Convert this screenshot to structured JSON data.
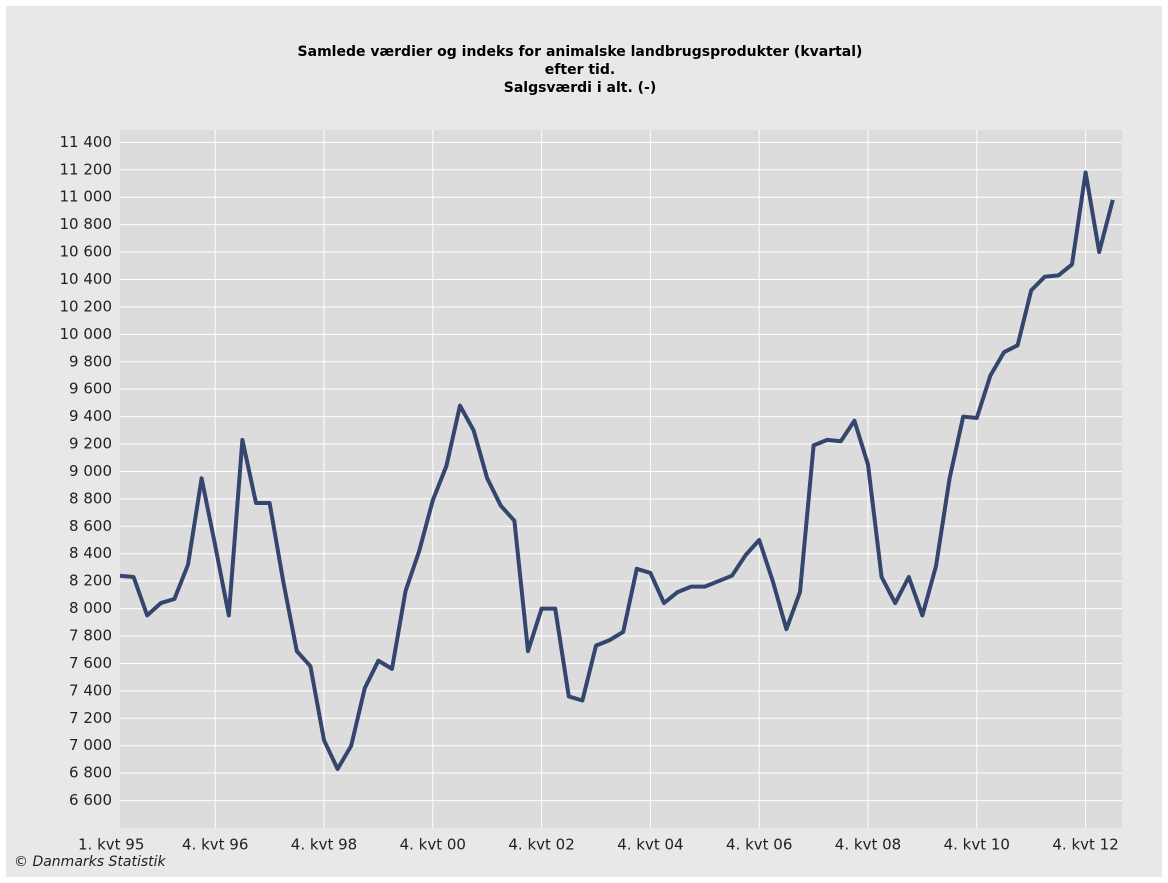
{
  "chart_data": {
    "type": "line",
    "title": [
      "Samlede værdier og indeks for animalske landbrugsprodukter (kvartal)",
      "efter tid.",
      "Salgsværdi i alt. (-)"
    ],
    "source": "© Danmarks Statistik",
    "categories": [
      "1. kvt 95",
      null,
      null,
      null,
      null,
      null,
      null,
      "4. kvt 96",
      null,
      null,
      null,
      null,
      null,
      null,
      null,
      "4. kvt 98",
      null,
      null,
      null,
      null,
      null,
      null,
      null,
      "4. kvt 00",
      null,
      null,
      null,
      null,
      null,
      null,
      null,
      "4. kvt 02",
      null,
      null,
      null,
      null,
      null,
      null,
      null,
      "4. kvt 04",
      null,
      null,
      null,
      null,
      null,
      null,
      null,
      "4. kvt 06",
      null,
      null,
      null,
      null,
      null,
      null,
      null,
      "4. kvt 08",
      null,
      null,
      null,
      null,
      null,
      null,
      null,
      "4. kvt 10",
      null,
      null,
      null,
      null,
      null,
      null,
      null,
      "4. kvt 12",
      null,
      null
    ],
    "series": [
      {
        "color": "#34466e",
        "values": [
          8240,
          8230,
          7950,
          8040,
          8070,
          8320,
          8950,
          8460,
          7950,
          9230,
          8770,
          8770,
          8200,
          7690,
          7580,
          7040,
          6830,
          7000,
          7420,
          7620,
          7560,
          8130,
          8420,
          8790,
          9040,
          9480,
          9300,
          8950,
          8750,
          8640,
          7690,
          8000,
          8000,
          7360,
          7330,
          7730,
          7770,
          7830,
          8290,
          8260,
          8040,
          8120,
          8160,
          8160,
          8200,
          8240,
          8390,
          8500,
          8200,
          7850,
          8120,
          9190,
          9230,
          9220,
          9370,
          9050,
          8230,
          8040,
          8230,
          7950,
          8310,
          8950,
          9400,
          9390,
          9700,
          9870,
          9920,
          10320,
          10420,
          10430,
          10510,
          11180,
          10600,
          10980
        ]
      }
    ],
    "ylim": [
      6400,
      11490
    ],
    "yticks": [
      {
        "value": 6600,
        "label": "6 600"
      },
      {
        "value": 6800,
        "label": "6 800"
      },
      {
        "value": 7000,
        "label": "7 000"
      },
      {
        "value": 7200,
        "label": "7 200"
      },
      {
        "value": 7400,
        "label": "7 400"
      },
      {
        "value": 7600,
        "label": "7 600"
      },
      {
        "value": 7800,
        "label": "7 800"
      },
      {
        "value": 8000,
        "label": "8 000"
      },
      {
        "value": 8200,
        "label": "8 200"
      },
      {
        "value": 8400,
        "label": "8 400"
      },
      {
        "value": 8600,
        "label": "8 600"
      },
      {
        "value": 8800,
        "label": "8 800"
      },
      {
        "value": 9000,
        "label": "9 000"
      },
      {
        "value": 9200,
        "label": "9 200"
      },
      {
        "value": 9400,
        "label": "9 400"
      },
      {
        "value": 9600,
        "label": "9 600"
      },
      {
        "value": 9800,
        "label": "9 800"
      },
      {
        "value": 10000,
        "label": "10 000"
      },
      {
        "value": 10200,
        "label": "10 200"
      },
      {
        "value": 10400,
        "label": "10 400"
      },
      {
        "value": 10600,
        "label": "10 600"
      },
      {
        "value": 10800,
        "label": "10 800"
      },
      {
        "value": 11000,
        "label": "11 000"
      },
      {
        "value": 11200,
        "label": "11 200"
      },
      {
        "value": 11400,
        "label": "11 400"
      }
    ],
    "grid": true
  }
}
